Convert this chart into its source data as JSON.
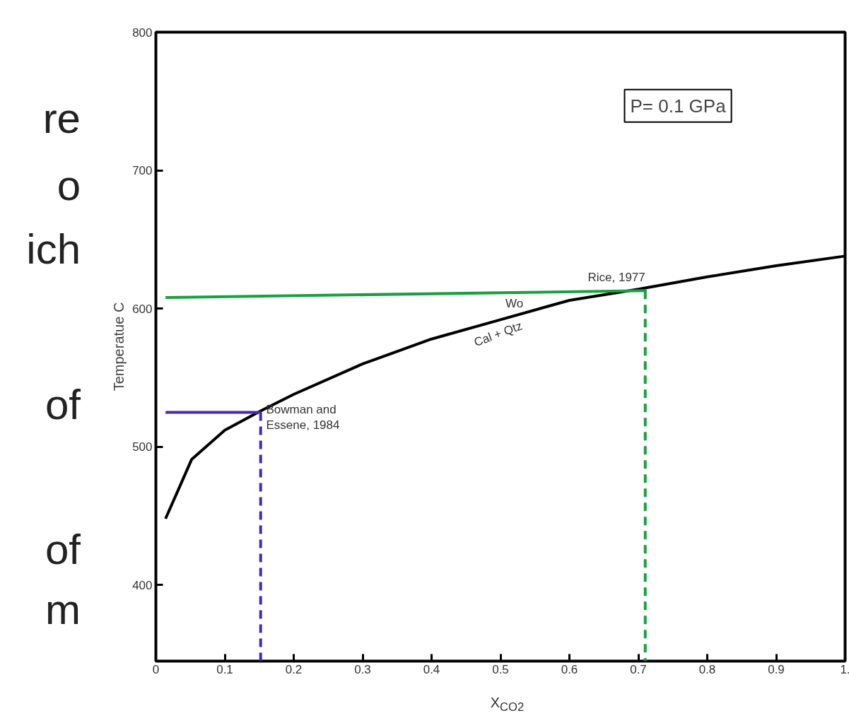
{
  "chart_data": {
    "type": "line",
    "xlabel": "X$_{CO2}$",
    "ylabel": "Temperatue C",
    "xlim": [
      0,
      1.0
    ],
    "ylim": [
      345,
      800
    ],
    "xticks": [
      0,
      0.1,
      0.2,
      0.3,
      0.4,
      0.5,
      0.6,
      0.7,
      0.8,
      0.9,
      {
        "value": 1.0,
        "label": "1."
      }
    ],
    "yticks": [
      400,
      500,
      600,
      700,
      800
    ],
    "grid": false,
    "series": [
      {
        "color": "#000000",
        "line_style": "solid",
        "x": [
          0.014,
          0.052,
          0.1,
          0.152,
          0.2,
          0.3,
          0.4,
          0.5,
          0.6,
          0.7,
          0.8,
          0.9,
          1.0
        ],
        "values": [
          448,
          491,
          512,
          526,
          538,
          560,
          578,
          592,
          606,
          614,
          623,
          631,
          638
        ]
      },
      {
        "color": "#1aa040",
        "line_style": "solid",
        "x": [
          0.014,
          0.712
        ],
        "values": [
          608,
          613
        ]
      },
      {
        "color": "#1aa040",
        "line_style": "dashed",
        "x": [
          0.71,
          0.71
        ],
        "values": [
          613,
          345
        ]
      },
      {
        "color": "#4a2aa8",
        "line_style": "solid",
        "x": [
          0.014,
          0.152
        ],
        "values": [
          525,
          525
        ]
      },
      {
        "color": "#4a2aa8",
        "line_style": "dashed",
        "x": [
          0.152,
          0.152
        ],
        "values": [
          525,
          345
        ]
      }
    ],
    "annotations": [
      {
        "text": "Rice, 1977",
        "x": 0.71,
        "y": 618
      },
      "Bowman and\nEssene, 1984",
      "Wo",
      "Cal + Qtz",
      "P= 0.1 GPa",
      "re",
      "o",
      "ich",
      "of",
      "of",
      "m"
    ]
  }
}
